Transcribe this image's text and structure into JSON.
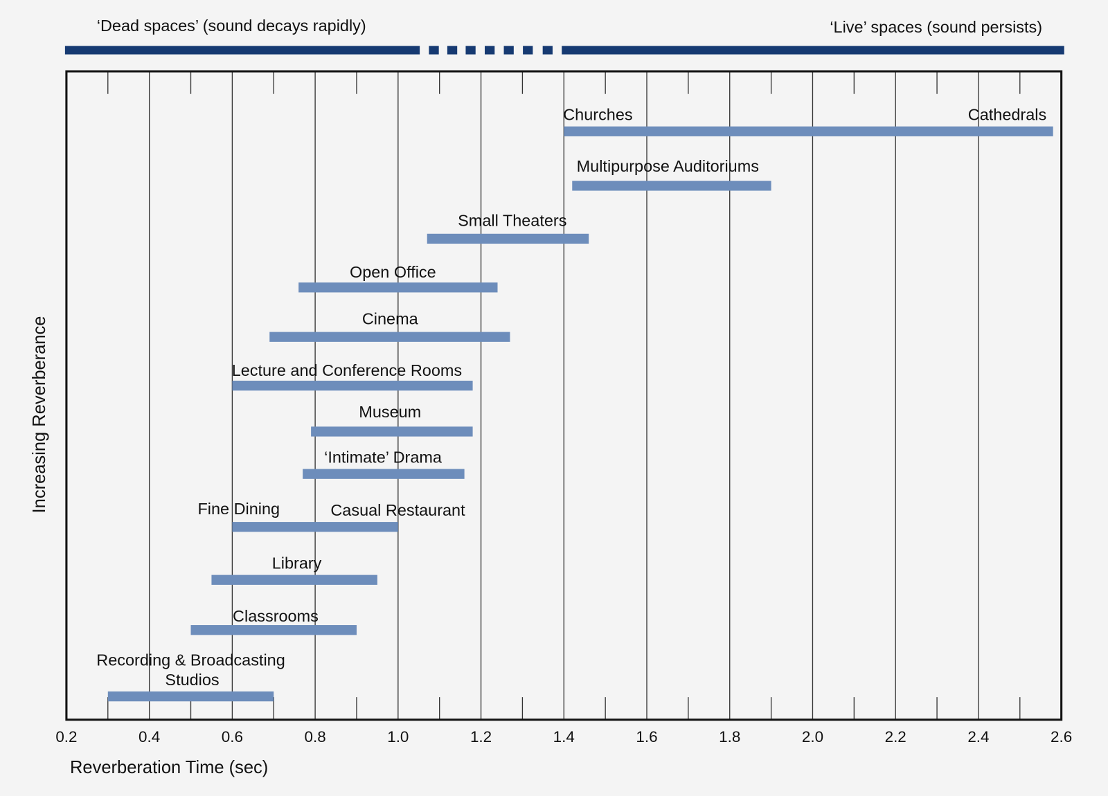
{
  "chart_data": {
    "type": "range-bar",
    "top_labels": {
      "dead": "‘Dead spaces’ (sound decays rapidly)",
      "live": "‘Live’ spaces (sound persists)"
    },
    "x_label": "Reverberation Time (sec)",
    "y_label": "Increasing Reverberance",
    "categories": [
      [
        "Churches",
        "Cathedrals"
      ],
      [
        "Multipurpose Auditoriums"
      ],
      [
        "Small Theaters"
      ],
      [
        "Open Office"
      ],
      [
        "Cinema"
      ],
      [
        "Lecture and Conference Rooms"
      ],
      [
        "Museum"
      ],
      [
        "‘Intimate’ Drama"
      ],
      [
        "Fine Dining",
        "Casual Restaurant"
      ],
      [
        "Library"
      ],
      [
        "Classrooms"
      ],
      [
        "Recording & Broadcasting",
        "Studios"
      ]
    ],
    "starts": [
      1.4,
      1.42,
      1.07,
      0.76,
      0.69,
      0.6,
      0.79,
      0.77,
      0.6,
      0.55,
      0.5,
      0.3
    ],
    "ends": [
      2.58,
      1.9,
      1.46,
      1.24,
      1.27,
      1.18,
      1.18,
      1.16,
      1.0,
      0.95,
      0.9,
      0.7
    ],
    "color": "#6d8dbb",
    "xlim": [
      0.2,
      2.6
    ],
    "xticks": [
      0.2,
      0.4,
      0.6,
      0.8,
      {
        "value": 1,
        "label": "1.0"
      },
      1.2,
      1.4,
      1.6,
      1.8,
      {
        "value": 2,
        "label": "2.0"
      },
      2.2,
      2.4,
      2.6
    ],
    "xminor_ticks": [
      0.3,
      0.5,
      0.7,
      0.9,
      1.1,
      1.3,
      1.5,
      1.7,
      1.9,
      2.1,
      2.3,
      2.5
    ],
    "grid": true
  }
}
